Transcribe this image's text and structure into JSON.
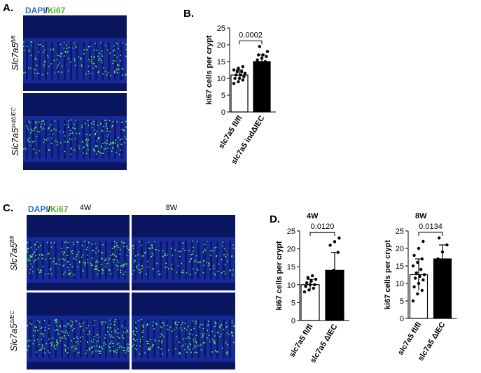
{
  "panels": {
    "A": {
      "label": "A.",
      "stain_dapi": "DAPI",
      "stain_sep": "/",
      "stain_ki67": "Ki67",
      "rows": [
        {
          "gene": "Slc7a5",
          "sup": "fl/fl"
        },
        {
          "gene": "Slc7a5",
          "sup": "indΔIEC"
        }
      ]
    },
    "B": {
      "label": "B."
    },
    "C": {
      "label": "C.",
      "stain_dapi": "DAPI",
      "stain_sep": "/",
      "stain_ki67": "Ki67",
      "columns": [
        "4W",
        "8W"
      ],
      "rows": [
        {
          "gene": "Slc7a5",
          "sup": "fl/fl"
        },
        {
          "gene": "Slc7a5",
          "sup": "ΔIEC"
        }
      ]
    },
    "D": {
      "label": "D."
    }
  },
  "chart_data": [
    {
      "type": "bar",
      "ylabel": "ki67 cells per crypt",
      "p_value": "0.0002",
      "categories": [
        "slc7a5 fl/fl",
        "slc7a5 indΔIEC"
      ],
      "values": [
        11,
        15
      ],
      "errors": [
        1.5,
        2
      ],
      "colors": [
        "#ffffff",
        "#000000"
      ],
      "points": [
        [
          8.5,
          9,
          9.5,
          10,
          10,
          10.5,
          11,
          11,
          11.5,
          12,
          12,
          12.5,
          13,
          13.5
        ],
        [
          13,
          14,
          15,
          15.5,
          16,
          16.5,
          17,
          17,
          18,
          19.5
        ]
      ],
      "ylim": [
        0,
        25
      ],
      "yticks": [
        0,
        5,
        10,
        15,
        20,
        25
      ]
    },
    {
      "type": "bar",
      "title": "4W",
      "ylabel": "ki67 cells per crypt",
      "p_value": "0.0120",
      "categories": [
        "slc7a5 fl/fl",
        "slc7a5 ΔIEC"
      ],
      "values": [
        10,
        14
      ],
      "errors": [
        1.5,
        5
      ],
      "colors": [
        "#ffffff",
        "#000000"
      ],
      "points": [
        [
          8,
          8.5,
          9,
          9.5,
          10,
          10,
          10.5,
          11,
          11.5,
          12,
          12.5
        ],
        [
          10,
          14,
          19,
          21,
          22,
          23
        ]
      ],
      "ylim": [
        0,
        25
      ],
      "yticks": [
        0,
        5,
        10,
        15,
        20,
        25
      ]
    },
    {
      "type": "bar",
      "title": "8W",
      "ylabel": "ki67 cells per crypt",
      "p_value": "0.0134",
      "categories": [
        "slc7a5 fl/fl",
        "slc7a5 ΔIEC"
      ],
      "values": [
        12.5,
        17
      ],
      "errors": [
        4.5,
        4
      ],
      "colors": [
        "#ffffff",
        "#000000"
      ],
      "points": [
        [
          5,
          7,
          8,
          9,
          10,
          11,
          11.5,
          12,
          12.5,
          13,
          14,
          15,
          16,
          17,
          18,
          20,
          22
        ],
        [
          13,
          15,
          16,
          17,
          19,
          21,
          23
        ]
      ],
      "ylim": [
        0,
        25
      ],
      "yticks": [
        0,
        5,
        10,
        15,
        20,
        25
      ]
    }
  ]
}
